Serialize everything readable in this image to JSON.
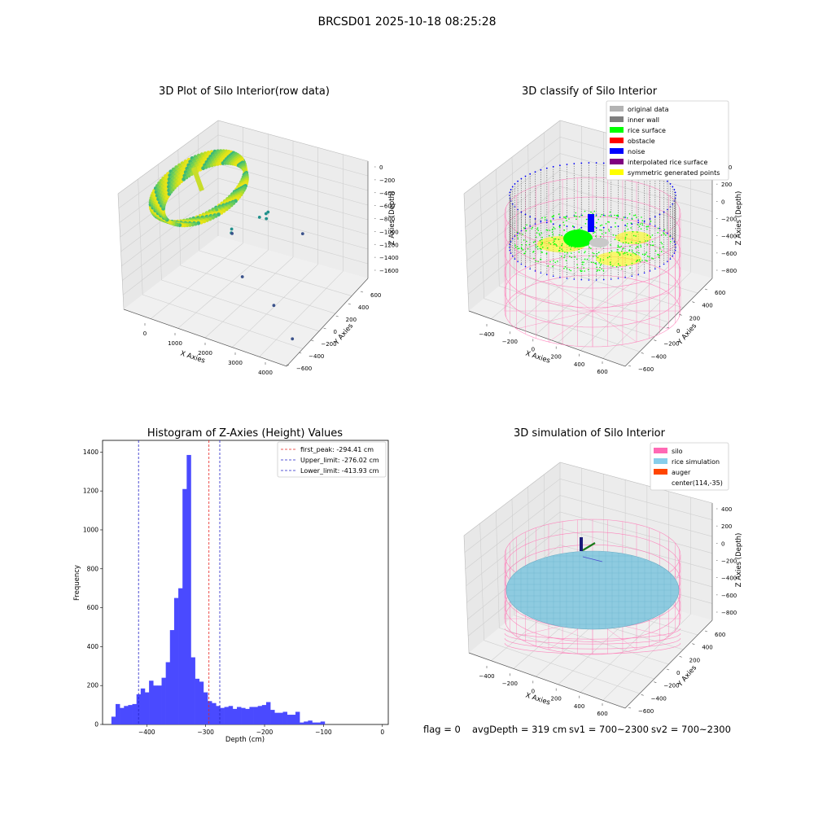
{
  "figure_title": "BRCSD01 2025-10-18 08:25:28",
  "footer": {
    "flag": "flag = 0",
    "avg_depth": "avgDepth = 319 cm",
    "sv1": "sv1 = 700~2300",
    "sv2": "sv2 = 700~2300"
  },
  "colors": {
    "hist_bar": "#4a4aff",
    "first_peak_line": "#e8231f",
    "limit_line": "#2323c8",
    "silo_mesh": "#ff77b5",
    "rice_fill": "#8ecbe0",
    "inner_wall": "#7f7f7f",
    "rice_surface": "#00ff00",
    "noise": "#0000ff",
    "symmetric_points": "#ffff00"
  },
  "chart_data": [
    {
      "type": "scatter",
      "title": "3D Plot of Silo Interior(row data)",
      "xlabel": "X Axies",
      "ylabel": "Y Axies",
      "zlabel": "Z Axies (Depth)",
      "x_ticks": [
        "0",
        "1000",
        "2000",
        "3000",
        "4000"
      ],
      "y_ticks": [
        "600",
        "400",
        "200",
        "0",
        "−200",
        "−400",
        "−600"
      ],
      "z_ticks": [
        "0",
        "−200",
        "−400",
        "−600",
        "−800",
        "−1000",
        "−1200",
        "−1400",
        "−1600"
      ],
      "xlim": [
        -400,
        4200
      ],
      "ylim": [
        -650,
        650
      ],
      "zlim": [
        -1700,
        100
      ],
      "colormap": "viridis by depth",
      "outlier_points": [
        {
          "x": 1250,
          "y": -150,
          "z": -300
        },
        {
          "x": 1800,
          "y": 300,
          "z": -700
        },
        {
          "x": 1850,
          "y": 280,
          "z": -750
        },
        {
          "x": 1820,
          "y": 320,
          "z": -690
        },
        {
          "x": 1500,
          "y": 350,
          "z": -850
        },
        {
          "x": 1020,
          "y": 180,
          "z": -950
        },
        {
          "x": 1030,
          "y": 170,
          "z": -1000
        },
        {
          "x": 1010,
          "y": 190,
          "z": -1030
        },
        {
          "x": 2500,
          "y": 500,
          "z": -1100
        },
        {
          "x": 1900,
          "y": -100,
          "z": -1280
        },
        {
          "x": 3200,
          "y": -300,
          "z": -1300
        },
        {
          "x": 4100,
          "y": -500,
          "z": -1450
        }
      ]
    },
    {
      "type": "scatter",
      "title": "3D classify of Silo Interior",
      "xlabel": "X Axies",
      "ylabel": "Y Axies",
      "zlabel": "Z Axies (Depth)",
      "x_ticks": [
        "−400",
        "−200",
        "0",
        "200",
        "400",
        "600"
      ],
      "y_ticks": [
        "600",
        "400",
        "200",
        "0",
        "−200",
        "−400",
        "−600"
      ],
      "z_ticks": [
        "400",
        "200",
        "0",
        "−200",
        "−400",
        "−600",
        "−800"
      ],
      "xlim": [
        -500,
        700
      ],
      "ylim": [
        -650,
        650
      ],
      "zlim": [
        -900,
        450
      ],
      "legend_position": "top-right",
      "legend": [
        {
          "label": "original data",
          "color": "#b3b3b3"
        },
        {
          "label": "inner wall",
          "color": "#7f7f7f"
        },
        {
          "label": "rice surface",
          "color": "#00ff00"
        },
        {
          "label": "obstacle",
          "color": "#ff0000"
        },
        {
          "label": "noise",
          "color": "#0000ff"
        },
        {
          "label": "interpolated rice surface",
          "color": "#800080"
        },
        {
          "label": "symmetric generated points",
          "color": "#ffff00"
        }
      ]
    },
    {
      "type": "bar",
      "title": "Histogram of Z-Axies (Height) Values",
      "xlabel": "Depth (cm)",
      "ylabel": "Frequency",
      "xlim": [
        -475,
        10
      ],
      "ylim": [
        0,
        1460
      ],
      "x_ticks": [
        -400,
        -300,
        -200,
        -100,
        0
      ],
      "y_ticks": [
        0,
        200,
        400,
        600,
        800,
        1000,
        1200,
        1400
      ],
      "bin_start": -460,
      "bin_width": 7.1,
      "values": [
        40,
        105,
        85,
        95,
        100,
        105,
        155,
        185,
        165,
        225,
        200,
        200,
        240,
        320,
        485,
        650,
        700,
        1210,
        1385,
        345,
        235,
        220,
        165,
        120,
        110,
        95,
        85,
        90,
        95,
        80,
        90,
        85,
        80,
        90,
        90,
        95,
        100,
        115,
        75,
        60,
        60,
        65,
        50,
        50,
        65,
        10,
        15,
        20,
        10,
        10,
        15
      ],
      "lines": [
        {
          "label": "first_peak: -294.41 cm",
          "x": -294.41,
          "color": "#e8231f"
        },
        {
          "label": "Upper_limit: -276.02 cm",
          "x": -276.02,
          "color": "#2323c8"
        },
        {
          "label": "Lower_limit: -413.93 cm",
          "x": -413.93,
          "color": "#2323c8"
        }
      ],
      "legend_position": "top-right"
    },
    {
      "type": "scatter",
      "title": "3D simulation of Silo Interior",
      "xlabel": "X Axies",
      "ylabel": "Y Axies",
      "zlabel": "Z Axies (Depth)",
      "x_ticks": [
        "−400",
        "−200",
        "0",
        "200",
        "400",
        "600"
      ],
      "y_ticks": [
        "600",
        "400",
        "200",
        "0",
        "−200",
        "−400",
        "−600"
      ],
      "z_ticks": [
        "400",
        "200",
        "0",
        "−200",
        "−400",
        "−600",
        "−800"
      ],
      "xlim": [
        -500,
        700
      ],
      "ylim": [
        -650,
        650
      ],
      "zlim": [
        -900,
        450
      ],
      "legend_position": "top-right",
      "legend": [
        {
          "label": "silo",
          "color": "#ff69b4"
        },
        {
          "label": "rice simulation",
          "color": "#87ceeb"
        },
        {
          "label": "auger",
          "color": "#ff4500"
        },
        {
          "label": "center(114,-35)",
          "color": ""
        }
      ]
    }
  ]
}
